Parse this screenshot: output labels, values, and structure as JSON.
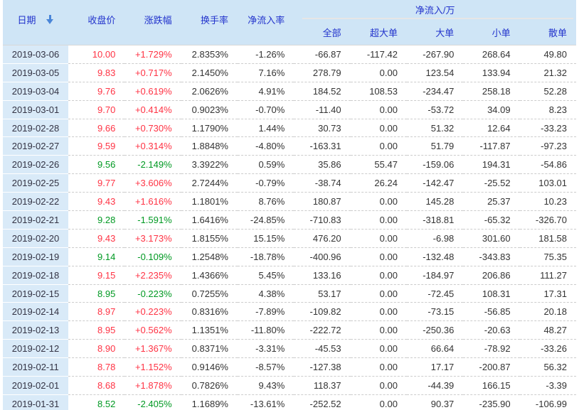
{
  "header": {
    "date_label": "日期",
    "cols": [
      "收盘价",
      "涨跌幅",
      "换手率",
      "净流入率"
    ],
    "group_label": "净流入/万",
    "group_cols": [
      "全部",
      "超大单",
      "大单",
      "小单",
      "散单"
    ]
  },
  "colors": {
    "up": "#ff3344",
    "down": "#009922",
    "header_bg": "#cfe5f6",
    "header_text": "#2233cc",
    "date_bg": "#d9eaf8",
    "num_text": "#333333",
    "arrow": "#4a86d8",
    "dash": "#cccccc",
    "group_divider": "#e6e6e6"
  },
  "chart_data": {
    "type": "table",
    "title": "净流入/万",
    "columns": [
      "日期",
      "收盘价",
      "涨跌幅",
      "换手率",
      "净流入率",
      "全部",
      "超大单",
      "大单",
      "小单",
      "散单"
    ]
  },
  "rows": [
    {
      "date": "2019-03-06",
      "trend": "up",
      "values": [
        "10.00",
        "+1.729%",
        "2.8353%",
        "-1.26%",
        "-66.87",
        "-117.42",
        "-267.90",
        "268.64",
        "49.80"
      ]
    },
    {
      "date": "2019-03-05",
      "trend": "up",
      "values": [
        "9.83",
        "+0.717%",
        "2.1450%",
        "7.16%",
        "278.79",
        "0.00",
        "123.54",
        "133.94",
        "21.32"
      ]
    },
    {
      "date": "2019-03-04",
      "trend": "up",
      "values": [
        "9.76",
        "+0.619%",
        "2.0626%",
        "4.91%",
        "184.52",
        "108.53",
        "-234.47",
        "258.18",
        "52.28"
      ]
    },
    {
      "date": "2019-03-01",
      "trend": "up",
      "values": [
        "9.70",
        "+0.414%",
        "0.9023%",
        "-0.70%",
        "-11.40",
        "0.00",
        "-53.72",
        "34.09",
        "8.23"
      ]
    },
    {
      "date": "2019-02-28",
      "trend": "up",
      "values": [
        "9.66",
        "+0.730%",
        "1.1790%",
        "1.44%",
        "30.73",
        "0.00",
        "51.32",
        "12.64",
        "-33.23"
      ]
    },
    {
      "date": "2019-02-27",
      "trend": "up",
      "values": [
        "9.59",
        "+0.314%",
        "1.8848%",
        "-4.80%",
        "-163.31",
        "0.00",
        "51.79",
        "-117.87",
        "-97.23"
      ]
    },
    {
      "date": "2019-02-26",
      "trend": "down",
      "values": [
        "9.56",
        "-2.149%",
        "3.3922%",
        "0.59%",
        "35.86",
        "55.47",
        "-159.06",
        "194.31",
        "-54.86"
      ]
    },
    {
      "date": "2019-02-25",
      "trend": "up",
      "values": [
        "9.77",
        "+3.606%",
        "2.7244%",
        "-0.79%",
        "-38.74",
        "26.24",
        "-142.47",
        "-25.52",
        "103.01"
      ]
    },
    {
      "date": "2019-02-22",
      "trend": "up",
      "values": [
        "9.43",
        "+1.616%",
        "1.1801%",
        "8.76%",
        "180.87",
        "0.00",
        "145.28",
        "25.37",
        "10.23"
      ]
    },
    {
      "date": "2019-02-21",
      "trend": "down",
      "values": [
        "9.28",
        "-1.591%",
        "1.6416%",
        "-24.85%",
        "-710.83",
        "0.00",
        "-318.81",
        "-65.32",
        "-326.70"
      ]
    },
    {
      "date": "2019-02-20",
      "trend": "up",
      "values": [
        "9.43",
        "+3.173%",
        "1.8155%",
        "15.15%",
        "476.20",
        "0.00",
        "-6.98",
        "301.60",
        "181.58"
      ]
    },
    {
      "date": "2019-02-19",
      "trend": "down",
      "values": [
        "9.14",
        "-0.109%",
        "1.2548%",
        "-18.78%",
        "-400.96",
        "0.00",
        "-132.48",
        "-343.83",
        "75.35"
      ]
    },
    {
      "date": "2019-02-18",
      "trend": "up",
      "values": [
        "9.15",
        "+2.235%",
        "1.4366%",
        "5.45%",
        "133.16",
        "0.00",
        "-184.97",
        "206.86",
        "111.27"
      ]
    },
    {
      "date": "2019-02-15",
      "trend": "down",
      "values": [
        "8.95",
        "-0.223%",
        "0.7255%",
        "4.38%",
        "53.17",
        "0.00",
        "-72.45",
        "108.31",
        "17.31"
      ]
    },
    {
      "date": "2019-02-14",
      "trend": "up",
      "values": [
        "8.97",
        "+0.223%",
        "0.8316%",
        "-7.89%",
        "-109.82",
        "0.00",
        "-73.15",
        "-56.85",
        "20.18"
      ]
    },
    {
      "date": "2019-02-13",
      "trend": "up",
      "values": [
        "8.95",
        "+0.562%",
        "1.1351%",
        "-11.80%",
        "-222.72",
        "0.00",
        "-250.36",
        "-20.63",
        "48.27"
      ]
    },
    {
      "date": "2019-02-12",
      "trend": "up",
      "values": [
        "8.90",
        "+1.367%",
        "0.8371%",
        "-3.31%",
        "-45.53",
        "0.00",
        "66.64",
        "-78.92",
        "-33.26"
      ]
    },
    {
      "date": "2019-02-11",
      "trend": "up",
      "values": [
        "8.78",
        "+1.152%",
        "0.9146%",
        "-8.57%",
        "-127.38",
        "0.00",
        "17.17",
        "-200.87",
        "56.32"
      ]
    },
    {
      "date": "2019-02-01",
      "trend": "up",
      "values": [
        "8.68",
        "+1.878%",
        "0.7826%",
        "9.43%",
        "118.37",
        "0.00",
        "-44.39",
        "166.15",
        "-3.39"
      ]
    },
    {
      "date": "2019-01-31",
      "trend": "down",
      "values": [
        "8.52",
        "-2.405%",
        "1.1689%",
        "-13.61%",
        "-252.52",
        "0.00",
        "90.37",
        "-235.90",
        "-106.99"
      ]
    }
  ]
}
